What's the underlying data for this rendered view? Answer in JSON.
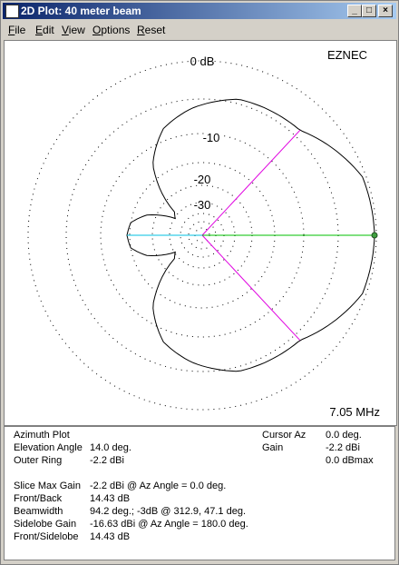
{
  "window": {
    "title": "2D Plot: 40 meter beam"
  },
  "menu": [
    "File",
    "Edit",
    "View",
    "Options",
    "Reset"
  ],
  "plot": {
    "brand": "EZNEC",
    "frequency": "7.05 MHz",
    "ring_labels": [
      "0 dB",
      "-10",
      "-20",
      "-30"
    ]
  },
  "info": {
    "heading": "Azimuth Plot",
    "left_rows": [
      {
        "label": "Elevation Angle",
        "value": "14.0 deg."
      },
      {
        "label": "Outer Ring",
        "value": "-2.2 dBi"
      }
    ],
    "right_rows": [
      {
        "label": "Cursor Az",
        "value": "0.0 deg."
      },
      {
        "label": "Gain",
        "value": "-2.2 dBi"
      },
      {
        "label": "",
        "value": "0.0 dBmax"
      }
    ],
    "results": [
      {
        "label": "Slice Max Gain",
        "value": "-2.2 dBi @ Az Angle = 0.0 deg."
      },
      {
        "label": "Front/Back",
        "value": "14.43 dB"
      },
      {
        "label": "Beamwidth",
        "value": "94.2 deg.; -3dB @ 312.9, 47.1 deg."
      },
      {
        "label": "Sidelobe Gain",
        "value": "-16.63 dBi @ Az Angle = 180.0 deg."
      },
      {
        "label": "Front/Sidelobe",
        "value": "14.43 dB"
      }
    ]
  }
}
